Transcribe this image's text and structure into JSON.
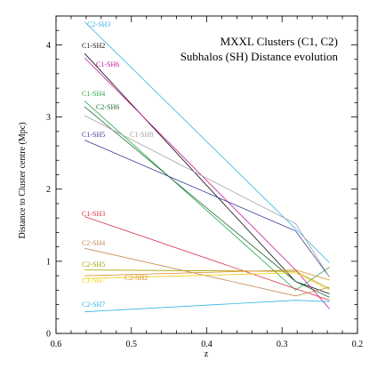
{
  "chart_data": {
    "type": "line",
    "title": "MXXL Clusters (C1, C2)",
    "subtitle": "Subhalos (SH) Distance evolution",
    "xlabel": "z",
    "ylabel": "Distance to Cluster centre (Mpc)",
    "xlim": [
      0.6,
      0.2
    ],
    "ylim": [
      0,
      4.4
    ],
    "x_ticks": [
      "0.6",
      "0.5",
      "0.4",
      "0.3",
      "0.2"
    ],
    "y_ticks": [
      "0",
      "1",
      "2",
      "3",
      "4"
    ],
    "grid": false,
    "series": [
      {
        "name": "C2-SH3",
        "color": "#33b5e5",
        "x": [
          0.562,
          0.282,
          0.237
        ],
        "y": [
          4.32,
          1.45,
          0.98
        ]
      },
      {
        "name": "C1-SH2",
        "color": "#111111",
        "x": [
          0.562,
          0.282,
          0.237
        ],
        "y": [
          3.88,
          0.72,
          0.55
        ]
      },
      {
        "name": "C1-SH6",
        "color": "#c2189b",
        "x": [
          0.562,
          0.282,
          0.237
        ],
        "y": [
          3.82,
          0.88,
          0.34
        ]
      },
      {
        "name": "C1-SH4",
        "color": "#2aa84a",
        "x": [
          0.562,
          0.282,
          0.237
        ],
        "y": [
          3.22,
          0.6,
          0.92
        ]
      },
      {
        "name": "C2-SH6",
        "color": "#1f6b34",
        "x": [
          0.562,
          0.282,
          0.237
        ],
        "y": [
          3.14,
          0.72,
          0.5
        ]
      },
      {
        "name": "C1-SH5",
        "color": "#3b3b9a",
        "x": [
          0.562,
          0.282,
          0.237
        ],
        "y": [
          2.68,
          1.42,
          0.78
        ]
      },
      {
        "name": "C1-SH8",
        "color": "#a0a0a0",
        "x": [
          0.562,
          0.282,
          0.237
        ],
        "y": [
          3.02,
          1.52,
          0.78
        ]
      },
      {
        "name": "C1-SH3",
        "color": "#d63447",
        "x": [
          0.562,
          0.282,
          0.237
        ],
        "y": [
          1.62,
          0.62,
          0.46
        ]
      },
      {
        "name": "C2-SH4",
        "color": "#c08a55",
        "x": [
          0.562,
          0.282,
          0.237
        ],
        "y": [
          1.18,
          0.52,
          0.64
        ]
      },
      {
        "name": "C2-SH5",
        "color": "#a8a000",
        "x": [
          0.562,
          0.282,
          0.237
        ],
        "y": [
          0.88,
          0.86,
          0.62
        ]
      },
      {
        "name": "C2-SH2",
        "color": "#e08a1e",
        "x": [
          0.562,
          0.282,
          0.237
        ],
        "y": [
          0.8,
          0.88,
          0.74
        ]
      },
      {
        "name": "C1-SH7",
        "color": "#f2d21a",
        "x": [
          0.562,
          0.282,
          0.237
        ],
        "y": [
          0.76,
          0.84,
          0.6
        ]
      },
      {
        "name": "C2-SH7",
        "color": "#33b5e5",
        "x": [
          0.562,
          0.282,
          0.237
        ],
        "y": [
          0.3,
          0.46,
          0.44
        ]
      }
    ]
  }
}
